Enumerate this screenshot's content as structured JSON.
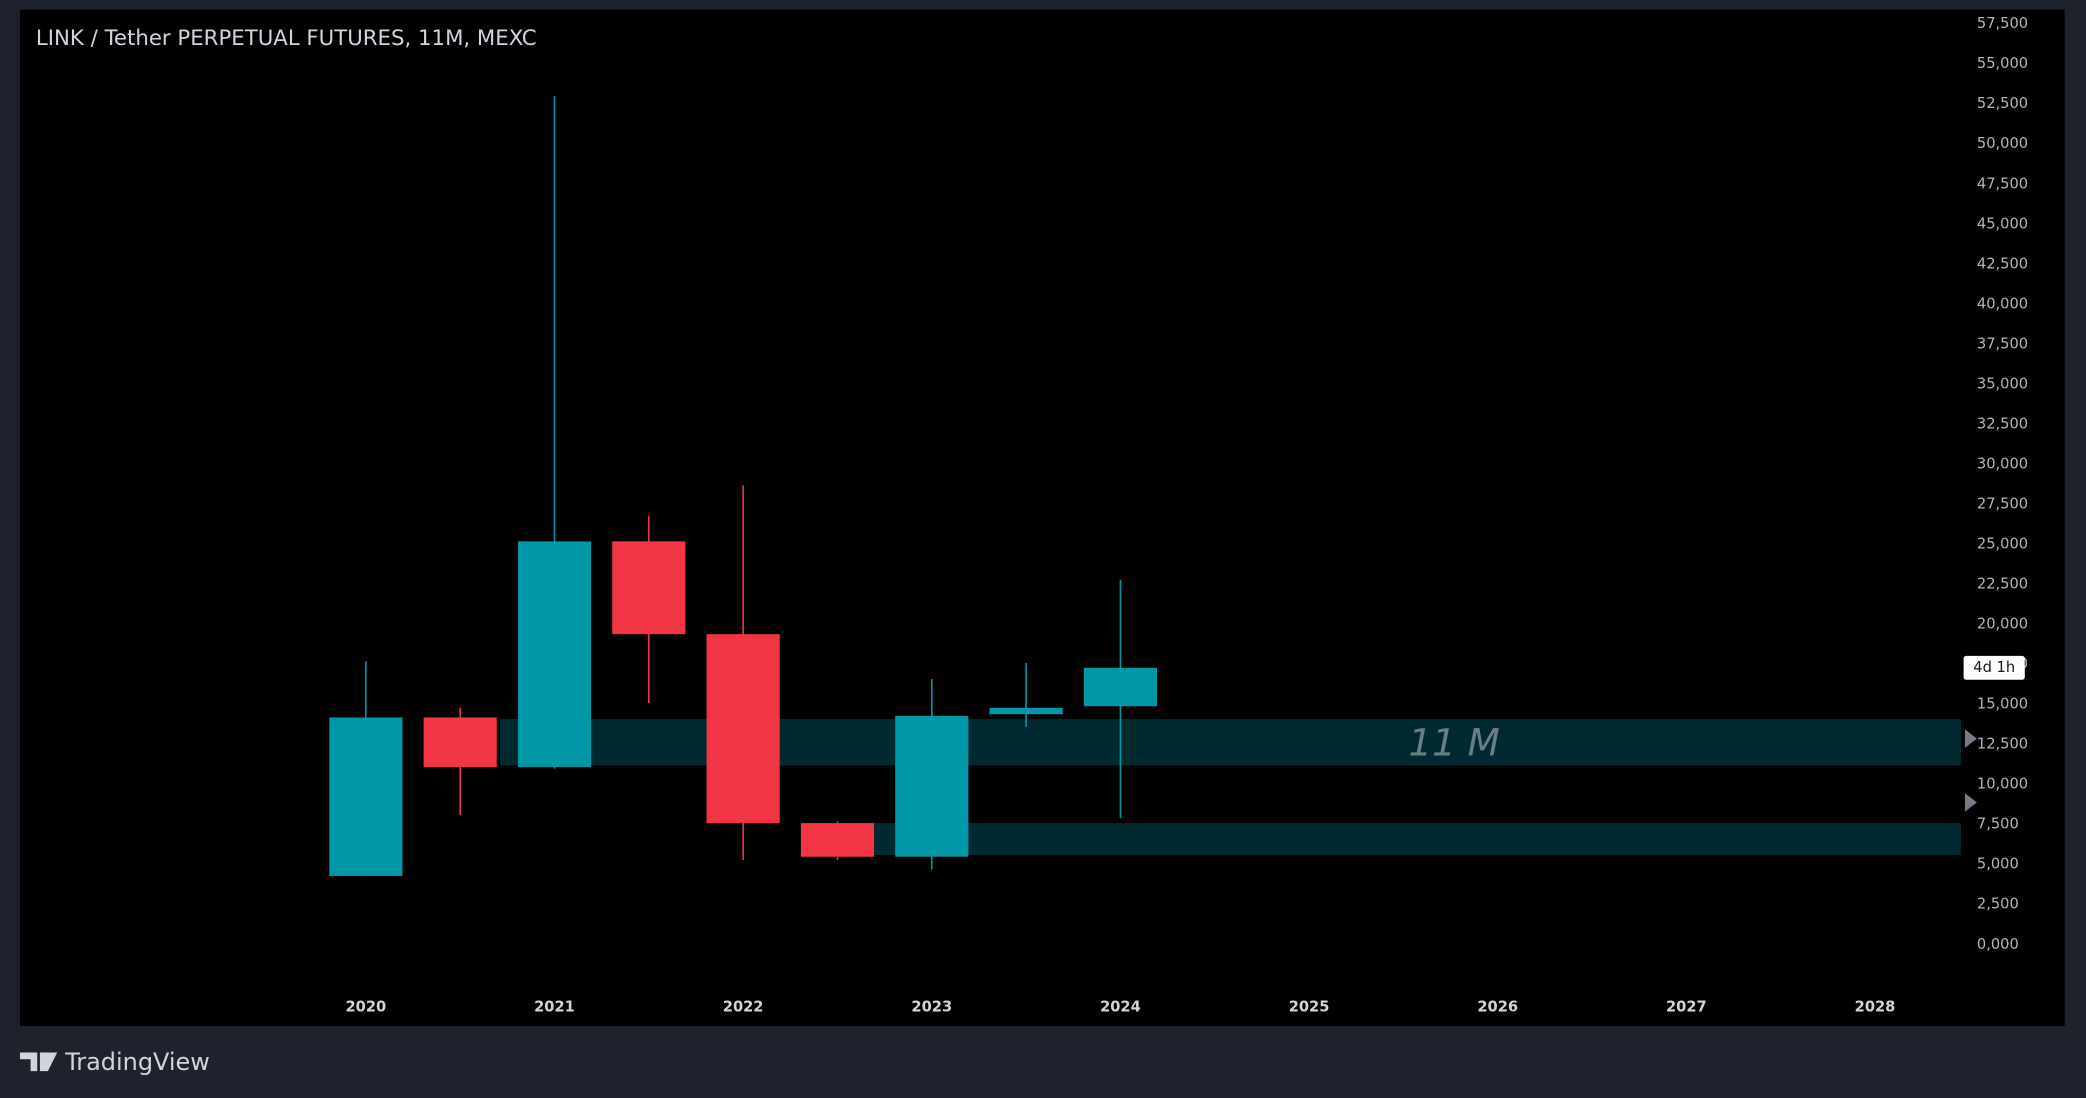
{
  "chart_data": {
    "type": "candlestick",
    "title": "LINK / Tether PERPETUAL FUTURES, 11M, MEXC",
    "categories": [
      "2020",
      null,
      "2021",
      null,
      "2022",
      null,
      "2023",
      null,
      "2024",
      null,
      "2025",
      null,
      "2026",
      null,
      "2027",
      null,
      "2028"
    ],
    "open": [
      4300,
      14200,
      11100,
      25200,
      19400,
      7600,
      5500,
      14400,
      14900,
      null,
      null,
      null,
      null,
      null,
      null,
      null,
      null
    ],
    "high": [
      17700,
      14800,
      53000,
      26800,
      28700,
      7700,
      16600,
      17600,
      22800,
      null,
      null,
      null,
      null,
      null,
      null,
      null,
      null
    ],
    "low": [
      4300,
      8100,
      11000,
      15100,
      5300,
      5300,
      4700,
      13600,
      7900,
      null,
      null,
      null,
      null,
      null,
      null,
      null,
      null
    ],
    "close": [
      14200,
      11100,
      25200,
      19400,
      7600,
      5500,
      14300,
      14800,
      17300,
      null,
      null,
      null,
      null,
      null,
      null,
      null,
      null
    ],
    "up_color": "#0097a7",
    "down_color": "#f23645",
    "ylim": [
      0,
      57500
    ],
    "yticks": [
      {
        "value": 0,
        "label": "0,000"
      },
      {
        "value": 2500,
        "label": "2,500"
      },
      {
        "value": 5000,
        "label": "5,000"
      },
      {
        "value": 7500,
        "label": "7,500"
      },
      {
        "value": 10000,
        "label": "10,000"
      },
      {
        "value": 12500,
        "label": "12,500"
      },
      {
        "value": 15000,
        "label": "15,000"
      },
      {
        "value": 17500,
        "label": "17,500"
      },
      {
        "value": 20000,
        "label": "20,000"
      },
      {
        "value": 22500,
        "label": "22,500"
      },
      {
        "value": 25000,
        "label": "25,000"
      },
      {
        "value": 27500,
        "label": "27,500"
      },
      {
        "value": 30000,
        "label": "30,000"
      },
      {
        "value": 32500,
        "label": "32,500"
      },
      {
        "value": 35000,
        "label": "35,000"
      },
      {
        "value": 37500,
        "label": "37,500"
      },
      {
        "value": 40000,
        "label": "40,000"
      },
      {
        "value": 42500,
        "label": "42,500"
      },
      {
        "value": 45000,
        "label": "45,000"
      },
      {
        "value": 47500,
        "label": "47,500"
      },
      {
        "value": 50000,
        "label": "50,000"
      },
      {
        "value": 52500,
        "label": "52,500"
      },
      {
        "value": 55000,
        "label": "55,000"
      },
      {
        "value": 57500,
        "label": "57,500"
      }
    ],
    "zones": [
      {
        "low": 11200,
        "high": 14100,
        "label": "11 M",
        "color": "#002a30"
      },
      {
        "low": 5600,
        "high": 7600,
        "color": "#002a30"
      }
    ],
    "countdown": "4d 1h"
  },
  "branding": "TradingView"
}
